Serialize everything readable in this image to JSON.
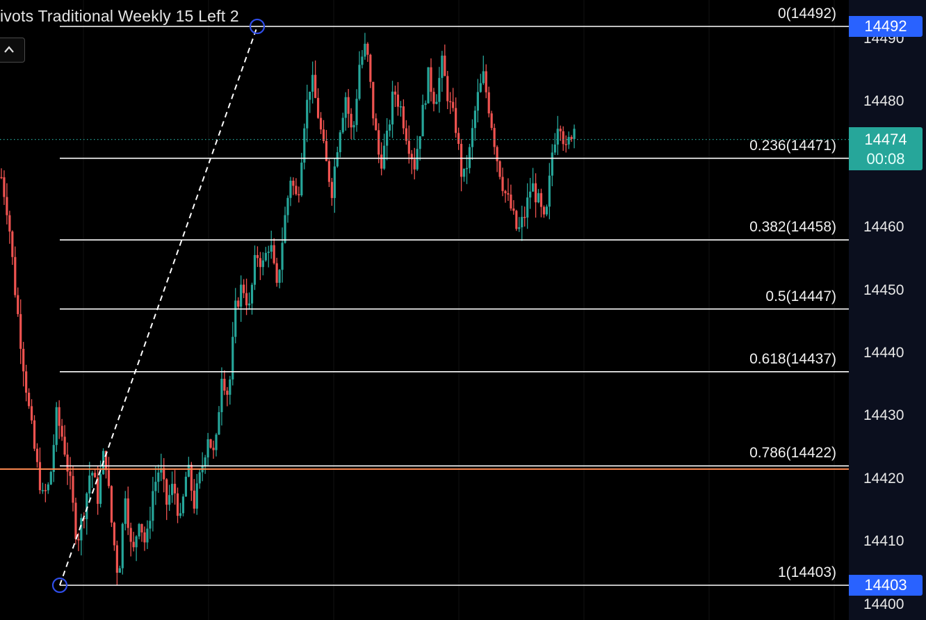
{
  "header": {
    "indicator_title": "ivots Traditional Weekly 15 Left 2"
  },
  "price_axis": {
    "ticks": [
      "14490",
      "14480",
      "14460",
      "14450",
      "14440",
      "14430",
      "14420",
      "14410",
      "14400"
    ],
    "high_badge": "14492",
    "low_badge": "14403",
    "current_price": "14474",
    "countdown": "00:08"
  },
  "colors": {
    "background": "#000000",
    "up_candle": "#26a69a",
    "down_candle": "#ef5350",
    "fib_line": "#ffffff",
    "pivot_line": "#ff8a50",
    "badge_blue": "#2962ff"
  },
  "chart_data": {
    "type": "candlestick",
    "y_axis_range": [
      14398,
      14494
    ],
    "fib_levels": [
      {
        "ratio": "0",
        "price": 14492,
        "label": "0(14492)"
      },
      {
        "ratio": "0.236",
        "price": 14471,
        "label": "0.236(14471)"
      },
      {
        "ratio": "0.382",
        "price": 14458,
        "label": "0.382(14458)"
      },
      {
        "ratio": "0.5",
        "price": 14447,
        "label": "0.5(14447)"
      },
      {
        "ratio": "0.618",
        "price": 14437,
        "label": "0.618(14437)"
      },
      {
        "ratio": "0.786",
        "price": 14422,
        "label": "0.786(14422)"
      },
      {
        "ratio": "1",
        "price": 14403,
        "label": "1(14403)"
      }
    ],
    "pivot_level": 14421.5,
    "current_price": 14474,
    "anchor_points": [
      {
        "label": "low",
        "price": 14403
      },
      {
        "label": "high",
        "price": 14492
      }
    ],
    "closes_path": [
      14468,
      14462,
      14450,
      14440,
      14431,
      14423,
      14417,
      14419,
      14430,
      14426,
      14419,
      14410,
      14415,
      14422,
      14417,
      14425,
      14413,
      14404,
      14418,
      14407,
      14414,
      14409,
      14418,
      14422,
      14416,
      14419,
      14413,
      14422,
      14416,
      14421,
      14427,
      14423,
      14437,
      14433,
      14447,
      14451,
      14447,
      14456,
      14454,
      14458,
      14450,
      14460,
      14468,
      14464,
      14477,
      14484,
      14478,
      14471,
      14466,
      14475,
      14481,
      14474,
      14486,
      14489,
      14478,
      14470,
      14474,
      14482,
      14479,
      14474,
      14470,
      14477,
      14484,
      14480,
      14486,
      14480,
      14476,
      14467,
      14472,
      14480,
      14484,
      14478,
      14471,
      14466,
      14463,
      14459,
      14462,
      14467,
      14464,
      14460,
      14472,
      14478,
      14472,
      14476
    ]
  }
}
